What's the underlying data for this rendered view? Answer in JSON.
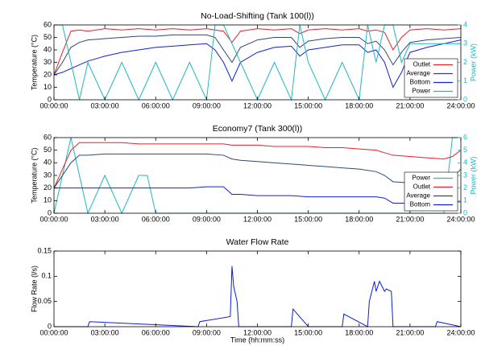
{
  "chart_data": [
    {
      "type": "line",
      "title": "No-Load-Shifting (Tank 100(l))",
      "ylabel": "Temperature (°C)",
      "y2label": "Power (kW)",
      "x": [
        0,
        0.5,
        1,
        1.5,
        2,
        3,
        4,
        5,
        6,
        7,
        8,
        9,
        9.5,
        10,
        10.5,
        11,
        12,
        13,
        14,
        14.5,
        15,
        16,
        17,
        18,
        18.5,
        19,
        19.5,
        20,
        20.5,
        21,
        22,
        23,
        24
      ],
      "series": [
        {
          "name": "Outlet",
          "color": "#e3212b",
          "values": [
            20,
            38,
            55,
            56,
            55,
            57,
            56,
            57,
            56,
            57,
            56,
            57,
            56,
            55,
            46,
            55,
            57,
            56,
            57,
            53,
            56,
            57,
            56,
            57,
            55,
            56,
            54,
            40,
            50,
            56,
            57,
            56,
            57
          ]
        },
        {
          "name": "Average",
          "color": "#2e4a6e",
          "values": [
            20,
            30,
            42,
            46,
            48,
            49,
            50,
            51,
            51,
            52,
            52,
            52,
            50,
            40,
            30,
            42,
            48,
            50,
            50,
            42,
            47,
            49,
            50,
            50,
            45,
            47,
            40,
            28,
            38,
            46,
            48,
            49,
            50
          ]
        },
        {
          "name": "Bottom",
          "color": "#1422d0",
          "values": [
            20,
            22,
            25,
            28,
            31,
            35,
            38,
            40,
            42,
            43,
            44,
            45,
            40,
            30,
            15,
            30,
            38,
            42,
            43,
            35,
            40,
            42,
            44,
            44,
            38,
            40,
            30,
            10,
            22,
            38,
            42,
            45,
            48
          ]
        },
        {
          "name": "Power",
          "color": "#1fb8c0",
          "axis": "y2",
          "values": [
            4,
            4,
            2,
            0,
            2,
            0,
            2,
            0,
            2,
            0,
            2,
            0,
            4,
            4,
            3,
            2,
            0,
            2,
            0,
            4,
            2,
            0,
            2,
            0,
            4,
            2,
            4,
            4,
            2,
            3,
            3,
            3,
            3
          ]
        }
      ],
      "xlim": [
        0,
        24
      ],
      "xticks": [
        {
          "value": 0,
          "label": "00:00:00"
        },
        {
          "value": 3,
          "label": "03:00:00"
        },
        {
          "value": 6,
          "label": "06:00:00"
        },
        {
          "value": 9,
          "label": "09:00:00"
        },
        {
          "value": 12,
          "label": "12:00:00"
        },
        {
          "value": 15,
          "label": "15:00:00"
        },
        {
          "value": 18,
          "label": "18:00:00"
        },
        {
          "value": 21,
          "label": "21:00:00"
        },
        {
          "value": 24,
          "label": "24:00:00"
        }
      ],
      "ylim": [
        0,
        60
      ],
      "yticks": [
        0,
        10,
        20,
        30,
        40,
        50,
        60
      ],
      "y2lim": [
        0,
        4
      ],
      "y2ticks": [
        0,
        1,
        2,
        3,
        4
      ],
      "legend": "lower right"
    },
    {
      "type": "line",
      "title": "Economy7 (Tank 300(l))",
      "ylabel": "Temperature (°C)",
      "y2label": "Power (kW)",
      "x": [
        0,
        1,
        1.5,
        2,
        3,
        4,
        5,
        5.5,
        6,
        7,
        8,
        9,
        10,
        10.5,
        11,
        12,
        13,
        14,
        15,
        16,
        17,
        18,
        19,
        19.5,
        20,
        21,
        22,
        23,
        23.5,
        24
      ],
      "series": [
        {
          "name": "Power",
          "color": "#1fb8c0",
          "axis": "y2",
          "values": [
            0,
            6,
            3,
            0,
            3,
            0,
            3,
            3,
            0,
            0,
            0,
            0,
            0,
            0,
            0,
            0,
            0,
            0,
            0,
            0,
            0,
            0,
            0,
            0,
            0,
            0,
            0,
            0,
            6,
            6
          ]
        },
        {
          "name": "Outlet",
          "color": "#e3212b",
          "values": [
            20,
            50,
            56,
            56,
            56,
            56,
            55,
            55,
            55,
            55,
            55,
            55,
            55,
            54,
            54,
            54,
            53,
            53,
            53,
            52,
            52,
            51,
            50,
            48,
            46,
            45,
            44,
            43,
            45,
            50
          ]
        },
        {
          "name": "Average",
          "color": "#2e4a6e",
          "values": [
            20,
            40,
            46,
            46,
            47,
            47,
            47,
            47,
            47,
            47,
            47,
            47,
            46,
            43,
            42,
            41,
            40,
            39,
            38,
            37,
            36,
            35,
            33,
            30,
            25,
            24,
            23,
            22,
            28,
            35
          ]
        },
        {
          "name": "Bottom",
          "color": "#1422d0",
          "values": [
            20,
            20,
            20,
            20,
            20,
            20,
            20,
            20,
            20,
            20,
            20,
            21,
            21,
            15,
            15,
            14,
            14,
            14,
            13,
            13,
            13,
            13,
            13,
            12,
            8,
            8,
            8,
            8,
            9,
            9
          ]
        }
      ],
      "xlim": [
        0,
        24
      ],
      "xticks": [
        {
          "value": 0,
          "label": "00:00:00"
        },
        {
          "value": 3,
          "label": "03:00:00"
        },
        {
          "value": 6,
          "label": "06:00:00"
        },
        {
          "value": 9,
          "label": "09:00:00"
        },
        {
          "value": 12,
          "label": "12:00:00"
        },
        {
          "value": 15,
          "label": "15:00:00"
        },
        {
          "value": 18,
          "label": "18:00:00"
        },
        {
          "value": 21,
          "label": "21:00:00"
        },
        {
          "value": 24,
          "label": "24:00:00"
        }
      ],
      "ylim": [
        0,
        60
      ],
      "yticks": [
        0,
        10,
        20,
        30,
        40,
        50,
        60
      ],
      "y2lim": [
        0,
        6
      ],
      "y2ticks": [
        0,
        1,
        2,
        3,
        4,
        5,
        6
      ],
      "legend": "lower right"
    },
    {
      "type": "line",
      "title": "Water Flow Rate",
      "ylabel": "Flow Rate (l/s)",
      "xlabel": "Time (hh:mm:ss)",
      "x": [
        0,
        2,
        2.1,
        8.5,
        8.6,
        10.4,
        10.5,
        10.6,
        10.8,
        10.9,
        14,
        14.1,
        15,
        17,
        17.1,
        18.5,
        18.6,
        18.9,
        19,
        19.2,
        19.5,
        19.6,
        19.9,
        20,
        22.5,
        22.6,
        24
      ],
      "values": [
        0,
        0,
        0.01,
        0,
        0.01,
        0.02,
        0.12,
        0.08,
        0.05,
        0,
        0,
        0.035,
        0,
        0,
        0.025,
        0,
        0.05,
        0.09,
        0.07,
        0.09,
        0.07,
        0.075,
        0.07,
        0,
        0,
        0.01,
        0
      ],
      "color": "#0a1fd0",
      "xlim": [
        0,
        24
      ],
      "xticks": [
        {
          "value": 0,
          "label": "00:00:00"
        },
        {
          "value": 3,
          "label": "03:00:00"
        },
        {
          "value": 6,
          "label": "06:00:00"
        },
        {
          "value": 9,
          "label": "09:00:00"
        },
        {
          "value": 12,
          "label": "12:00:00"
        },
        {
          "value": 15,
          "label": "15:00:00"
        },
        {
          "value": 18,
          "label": "18:00:00"
        },
        {
          "value": 21,
          "label": "21:00:00"
        },
        {
          "value": 24,
          "label": "24:00:00"
        }
      ],
      "ylim": [
        0,
        0.15
      ],
      "yticks": [
        0,
        0.05,
        0.1,
        0.15
      ]
    }
  ]
}
